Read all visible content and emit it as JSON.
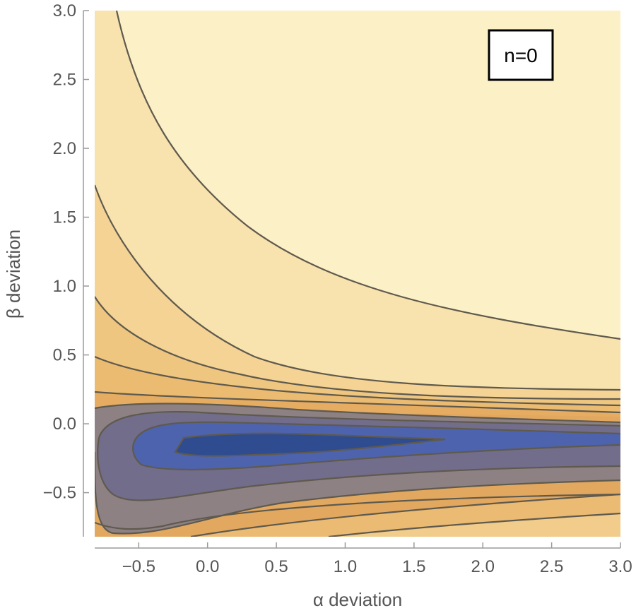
{
  "chart_data": {
    "type": "contour",
    "xlabel": "α deviation",
    "ylabel": "β deviation",
    "xlim": [
      -0.82,
      3.0
    ],
    "ylim": [
      -0.82,
      3.0
    ],
    "x_ticks": [
      "−0.5",
      "0.0",
      "0.5",
      "1.0",
      "1.5",
      "2.0",
      "2.5",
      "3.0"
    ],
    "x_tick_values": [
      -0.5,
      0.0,
      0.5,
      1.0,
      1.5,
      2.0,
      2.5,
      3.0
    ],
    "y_ticks": [
      "−0.5",
      "0.0",
      "0.5",
      "1.0",
      "1.5",
      "2.0",
      "2.5",
      "3.0"
    ],
    "y_tick_values": [
      -0.5,
      0.0,
      0.5,
      1.0,
      1.5,
      2.0,
      2.5,
      3.0
    ],
    "annotation": "n=0",
    "grid": false,
    "colors": {
      "background_lightest": "#fcf0c7",
      "band_light": "#f6d99b",
      "band_mid": "#edbd72",
      "band_orange": "#e1a45b",
      "band_gray": "#8a8088",
      "band_slate": "#706c8c",
      "band_blue": "#4f64ae",
      "band_darkest": "#2c4c8e",
      "contour_line": "#5a5a50"
    }
  }
}
